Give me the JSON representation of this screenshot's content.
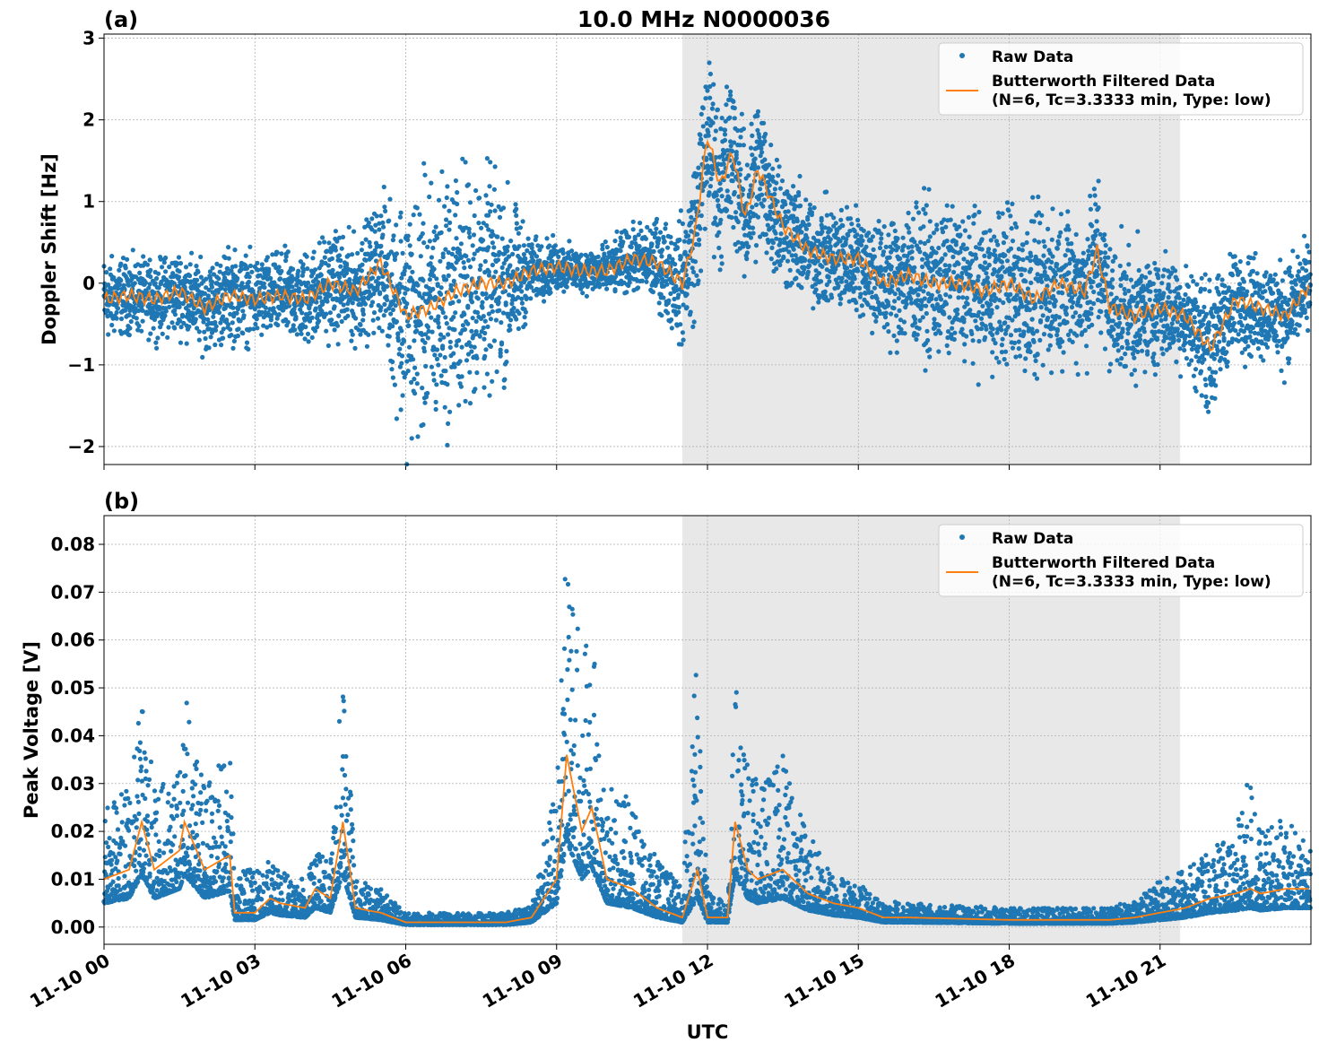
{
  "figure_title": "10.0 MHz N0000036",
  "x_axis_label": "UTC",
  "x_tick_labels": [
    "11-10 00",
    "11-10 03",
    "11-10 06",
    "11-10 09",
    "11-10 12",
    "11-10 15",
    "11-10 18",
    "11-10 21"
  ],
  "colors": {
    "raw": "#1f77b4",
    "filtered": "#ff7f0e",
    "shade": "#e8e8e8",
    "grid": "#b0b0b0"
  },
  "chart_data": [
    {
      "type": "scatter",
      "panel_label": "(a)",
      "ylabel": "Doppler Shift [Hz]",
      "xlim_hours": [
        0,
        24
      ],
      "ylim": [
        -2.22,
        3.05
      ],
      "y_ticks": [
        -2,
        -1,
        0,
        1,
        2,
        3
      ],
      "y_tick_labels": [
        "−2",
        "−1",
        "0",
        "1",
        "2",
        "3"
      ],
      "grid": true,
      "legend_position": "top-right",
      "shaded_region_hours": [
        11.5,
        21.4
      ],
      "legend": [
        "Raw Data",
        "Butterworth Filtered Data",
        "(N=6, Tc=3.3333 min, Type: low)"
      ],
      "series": [
        {
          "name": "Butterworth Filtered Data",
          "x_hours": [
            0,
            0.5,
            1,
            1.5,
            2,
            2.5,
            3,
            3.5,
            4,
            4.5,
            5,
            5.5,
            6,
            6.5,
            7,
            7.5,
            8,
            8.5,
            9,
            9.5,
            10,
            10.5,
            11,
            11.5,
            11.75,
            12,
            12.25,
            12.5,
            12.75,
            13,
            13.5,
            14,
            14.5,
            15,
            15.5,
            16,
            16.5,
            17,
            17.5,
            18,
            18.5,
            19,
            19.5,
            19.75,
            20,
            20.5,
            21,
            21.5,
            22,
            22.5,
            23,
            23.5,
            24
          ],
          "y": [
            -0.2,
            -0.15,
            -0.2,
            -0.1,
            -0.3,
            -0.15,
            -0.2,
            -0.15,
            -0.2,
            0.0,
            -0.1,
            0.25,
            -0.4,
            -0.3,
            -0.1,
            0.0,
            0.0,
            0.15,
            0.2,
            0.15,
            0.15,
            0.3,
            0.25,
            0.0,
            0.6,
            1.8,
            1.2,
            1.6,
            0.8,
            1.4,
            0.7,
            0.4,
            0.3,
            0.3,
            0.0,
            0.1,
            0.0,
            0.0,
            -0.1,
            0.0,
            -0.2,
            0.0,
            -0.1,
            0.4,
            -0.3,
            -0.4,
            -0.3,
            -0.4,
            -0.8,
            -0.2,
            -0.3,
            -0.4,
            0.0
          ]
        },
        {
          "name": "Raw Data",
          "spread": [
            0.4,
            0.35,
            0.35,
            0.4,
            0.4,
            0.45,
            0.4,
            0.4,
            0.45,
            0.5,
            0.5,
            0.6,
            1.2,
            1.2,
            1.2,
            1.1,
            0.9,
            0.3,
            0.25,
            0.2,
            0.25,
            0.3,
            0.4,
            0.6,
            0.8,
            0.8,
            0.8,
            0.8,
            0.7,
            0.8,
            0.6,
            0.5,
            0.5,
            0.5,
            0.6,
            0.7,
            0.7,
            0.7,
            0.7,
            0.8,
            0.8,
            0.7,
            0.7,
            0.8,
            0.6,
            0.6,
            0.5,
            0.5,
            0.6,
            0.5,
            0.5,
            0.5,
            0.4
          ]
        }
      ]
    },
    {
      "type": "scatter",
      "panel_label": "(b)",
      "ylabel": "Peak Voltage [V]",
      "xlim_hours": [
        0,
        24
      ],
      "ylim": [
        -0.0036,
        0.086
      ],
      "y_ticks": [
        0,
        0.01,
        0.02,
        0.03,
        0.04,
        0.05,
        0.06,
        0.07,
        0.08
      ],
      "y_tick_labels": [
        "0.00",
        "0.01",
        "0.02",
        "0.03",
        "0.04",
        "0.05",
        "0.06",
        "0.07",
        "0.08"
      ],
      "grid": true,
      "legend_position": "top-right",
      "shaded_region_hours": [
        11.5,
        21.4
      ],
      "legend": [
        "Raw Data",
        "Butterworth Filtered Data",
        "(N=6, Tc=3.3333 min, Type: low)"
      ],
      "series": [
        {
          "name": "Butterworth Filtered Data",
          "x_hours": [
            0,
            0.5,
            0.75,
            1,
            1.5,
            1.6,
            2,
            2.5,
            2.6,
            3,
            3.3,
            3.5,
            4,
            4.2,
            4.5,
            4.75,
            5,
            5.5,
            6,
            7,
            8,
            8.5,
            9,
            9.2,
            9.5,
            9.7,
            10,
            10.5,
            11,
            11.5,
            11.8,
            12,
            12.4,
            12.55,
            12.8,
            13,
            13.5,
            14,
            14.5,
            15,
            15.5,
            16,
            18,
            20,
            20.5,
            21,
            21.5,
            22,
            22.5,
            22.8,
            23,
            23.5,
            24
          ],
          "y": [
            0.01,
            0.012,
            0.022,
            0.012,
            0.016,
            0.022,
            0.012,
            0.015,
            0.003,
            0.003,
            0.006,
            0.005,
            0.004,
            0.008,
            0.006,
            0.022,
            0.004,
            0.003,
            0.001,
            0.001,
            0.001,
            0.002,
            0.01,
            0.036,
            0.02,
            0.025,
            0.01,
            0.008,
            0.004,
            0.002,
            0.012,
            0.002,
            0.002,
            0.022,
            0.012,
            0.01,
            0.012,
            0.007,
            0.005,
            0.004,
            0.002,
            0.002,
            0.0015,
            0.0015,
            0.002,
            0.003,
            0.004,
            0.006,
            0.007,
            0.008,
            0.007,
            0.008,
            0.008
          ]
        },
        {
          "name": "Raw Data",
          "peak_max": [
            0.025,
            0.03,
            0.048,
            0.03,
            0.032,
            0.049,
            0.03,
            0.037,
            0.012,
            0.012,
            0.014,
            0.012,
            0.01,
            0.016,
            0.014,
            0.059,
            0.01,
            0.008,
            0.003,
            0.003,
            0.003,
            0.005,
            0.03,
            0.082,
            0.06,
            0.062,
            0.03,
            0.027,
            0.015,
            0.008,
            0.061,
            0.008,
            0.006,
            0.054,
            0.035,
            0.03,
            0.037,
            0.02,
            0.012,
            0.009,
            0.006,
            0.005,
            0.004,
            0.004,
            0.006,
            0.01,
            0.012,
            0.016,
            0.02,
            0.035,
            0.02,
            0.023,
            0.016
          ]
        }
      ]
    }
  ]
}
